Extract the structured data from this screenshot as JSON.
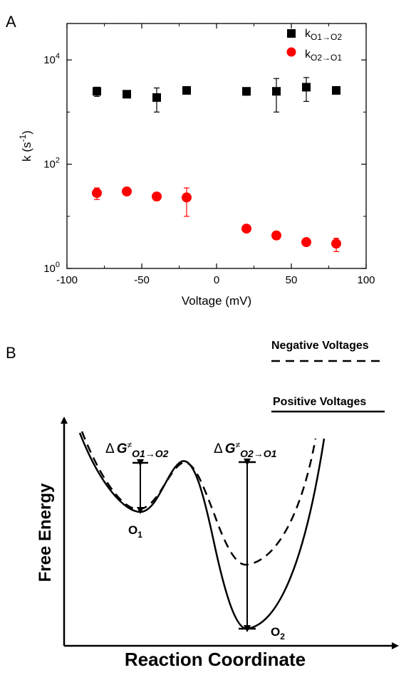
{
  "panels": {
    "a_label": "A",
    "b_label": "B"
  },
  "chart_data": [
    {
      "panel": "A",
      "type": "scatter",
      "title": "",
      "xlabel": "Voltage (mV)",
      "ylabel_main": "k (s",
      "ylabel_exp": "-1",
      "ylabel_close": ")",
      "y_scale": "log",
      "xlim": [
        -100,
        100
      ],
      "ylim": [
        1,
        50000
      ],
      "xticks": [
        -100,
        -50,
        0,
        50,
        100
      ],
      "xtick_labels": [
        "-100",
        "-50",
        "0",
        "50",
        "100"
      ],
      "yticks": [
        1,
        100,
        10000
      ],
      "ytick_labels": [
        {
          "base": "10",
          "exp": "0"
        },
        {
          "base": "10",
          "exp": "2"
        },
        {
          "base": "10",
          "exp": "4"
        }
      ],
      "legend_position": "top-right",
      "series": [
        {
          "name_main": "k",
          "name_sub": "O1→O2",
          "marker": "square",
          "color": "#000000",
          "x": [
            -80,
            -60,
            -40,
            -20,
            20,
            40,
            60,
            80
          ],
          "y": [
            2500,
            2200,
            1900,
            2600,
            2500,
            2500,
            3000,
            2600
          ],
          "err_low": [
            2000,
            2200,
            1000,
            2200,
            2100,
            1000,
            1600,
            2600
          ],
          "err_high": [
            3000,
            2200,
            2900,
            3000,
            2900,
            4400,
            4600,
            2600
          ]
        },
        {
          "name_main": "k",
          "name_sub": "O2→O1",
          "marker": "circle",
          "color": "#ff0000",
          "x": [
            -80,
            -60,
            -40,
            -20,
            20,
            40,
            60,
            80
          ],
          "y": [
            28,
            30,
            24,
            23,
            5.8,
            4.3,
            3.2,
            3.0
          ],
          "err_low": [
            21,
            30,
            20,
            10,
            5.8,
            3.6,
            3.2,
            2.1
          ],
          "err_high": [
            35,
            30,
            28,
            35,
            5.8,
            5.0,
            3.2,
            3.8
          ]
        }
      ]
    },
    {
      "panel": "B",
      "type": "diagram",
      "xlabel": "Reaction Coordinate",
      "ylabel": "Free Energy",
      "legend": [
        {
          "label": "Negative Voltages",
          "style": "dashed"
        },
        {
          "label": "Positive Voltages",
          "style": "solid"
        }
      ],
      "states": [
        {
          "base": "O",
          "sub": "1"
        },
        {
          "base": "O",
          "sub": "2"
        }
      ],
      "barriers": [
        {
          "delta": "Δ",
          "g": "G",
          "neq": "≠",
          "sub": "O1→O2"
        },
        {
          "delta": "Δ",
          "g": "G",
          "neq": "≠",
          "sub": "O2→O1"
        }
      ]
    }
  ]
}
